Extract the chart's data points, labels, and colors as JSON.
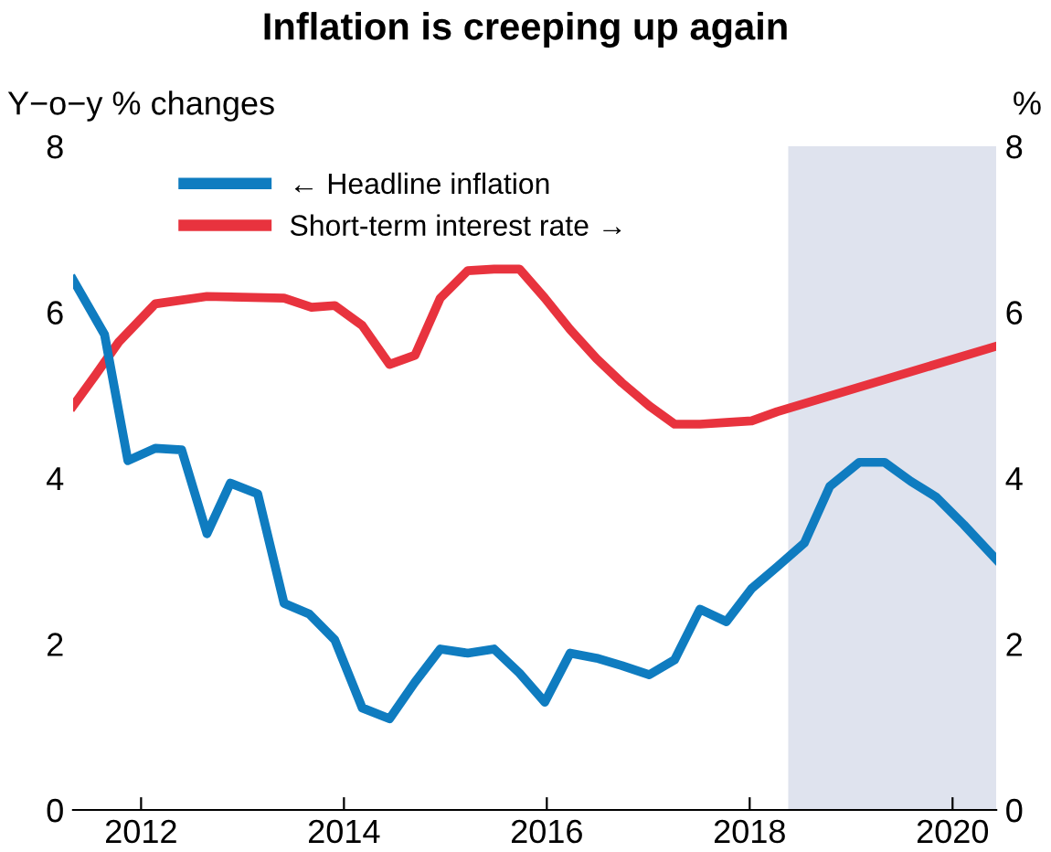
{
  "chart_data": {
    "type": "line",
    "title": "Inflation is creeping up again",
    "ylabel": "Y−o−y % changes",
    "y2label": "%",
    "xlim": [
      2011.33,
      2020.43
    ],
    "xticks": [
      2012,
      2014,
      2016,
      2018,
      2020
    ],
    "ylim": [
      0,
      8
    ],
    "yticks": [
      0,
      2,
      4,
      6,
      8
    ],
    "y2lim": [
      0,
      8
    ],
    "y2ticks": [
      0,
      2,
      4,
      6,
      8
    ],
    "grid": false,
    "legend": "top",
    "marker": "none",
    "line_style": "solid",
    "bands": [
      {
        "axis": "x",
        "from": 2018.38,
        "to": 2020.43,
        "color": "#dfe3ee"
      }
    ],
    "series": [
      {
        "name": "← Headline inflation",
        "color": "#0f7cc0",
        "x": [
          2011.33,
          2011.64,
          2011.87,
          2012.14,
          2012.4,
          2012.65,
          2012.88,
          2013.15,
          2013.41,
          2013.66,
          2013.91,
          2014.18,
          2014.45,
          2014.7,
          2014.95,
          2015.22,
          2015.48,
          2015.73,
          2015.98,
          2016.23,
          2016.49,
          2016.74,
          2017.01,
          2017.26,
          2017.51,
          2017.77,
          2018.02,
          2018.27,
          2018.54,
          2018.79,
          2019.08,
          2019.33,
          2019.59,
          2019.84,
          2020.11,
          2020.43
        ],
        "values": [
          6.39,
          5.73,
          4.21,
          4.36,
          4.34,
          3.33,
          3.94,
          3.81,
          2.49,
          2.36,
          2.05,
          1.23,
          1.1,
          1.54,
          1.94,
          1.89,
          1.94,
          1.65,
          1.3,
          1.89,
          1.83,
          1.74,
          1.63,
          1.81,
          2.42,
          2.27,
          2.67,
          2.93,
          3.22,
          3.9,
          4.19,
          4.19,
          3.96,
          3.77,
          3.44,
          3.02
        ]
      },
      {
        "name": "Short-term interest rate →",
        "color": "#e8333e",
        "axis": "y2",
        "x": [
          2011.33,
          2011.55,
          2011.78,
          2012.14,
          2012.65,
          2013.41,
          2013.68,
          2013.91,
          2014.18,
          2014.45,
          2014.7,
          2014.95,
          2015.22,
          2015.48,
          2015.73,
          2015.98,
          2016.23,
          2016.49,
          2016.74,
          2017.01,
          2017.26,
          2017.51,
          2017.77,
          2018.02,
          2018.27,
          2020.43
        ],
        "values": [
          4.87,
          5.24,
          5.64,
          6.1,
          6.19,
          6.17,
          6.06,
          6.08,
          5.84,
          5.37,
          5.48,
          6.17,
          6.5,
          6.52,
          6.52,
          6.17,
          5.79,
          5.44,
          5.15,
          4.87,
          4.65,
          4.65,
          4.67,
          4.69,
          4.8,
          5.59
        ]
      }
    ]
  }
}
